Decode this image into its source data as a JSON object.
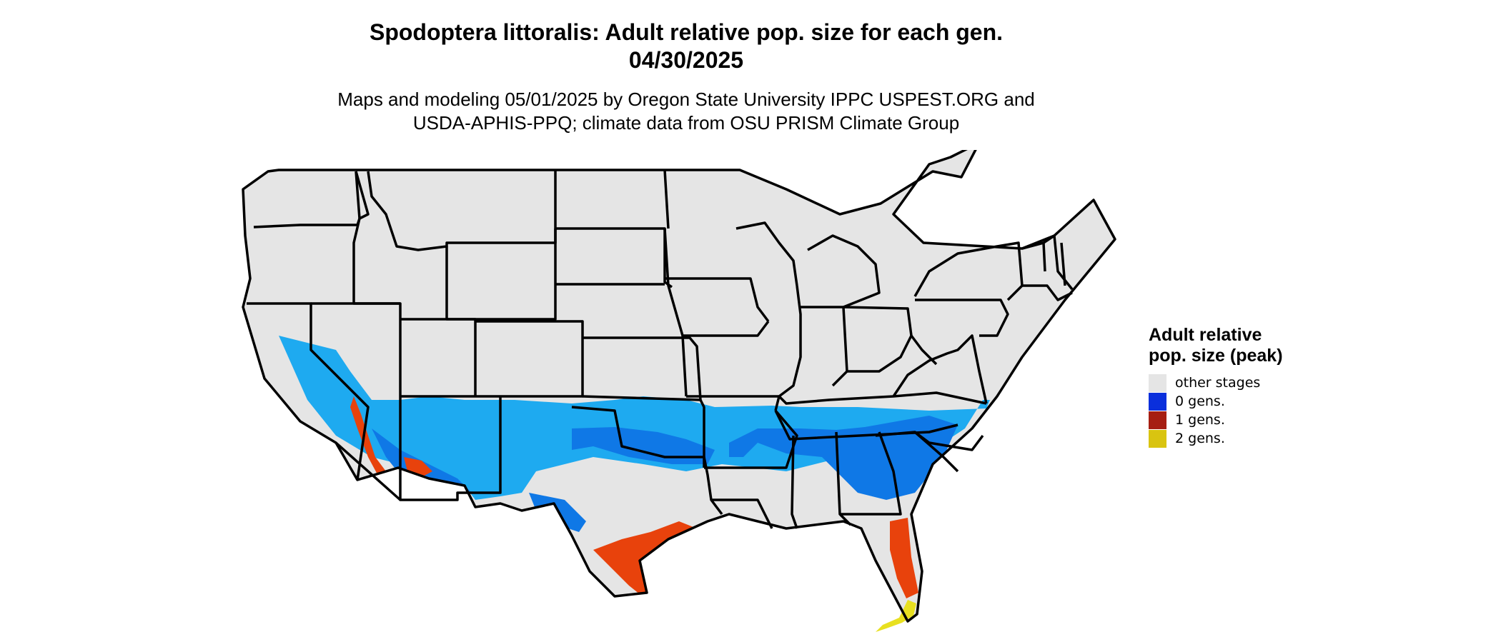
{
  "title": {
    "line1": "Spodoptera littoralis: Adult relative pop. size for each gen.",
    "line2": "04/30/2025"
  },
  "subtitle": {
    "line1": "Maps and modeling 05/01/2025 by Oregon State University IPPC USPEST.ORG and",
    "line2": "USDA-APHIS-PPQ; climate data from OSU PRISM Climate Group"
  },
  "legend": {
    "title": "Adult relative pop. size (peak)",
    "items": [
      {
        "label": "other stages",
        "color": "#e5e5e5"
      },
      {
        "label": "0 gens.",
        "color": "#0a2fdc"
      },
      {
        "label": "1 gens.",
        "color": "#a61e12"
      },
      {
        "label": "2 gens.",
        "color": "#d9c410"
      }
    ]
  },
  "colors": {
    "land": "#e5e5e5",
    "border": "#000000",
    "zero_gen_light": "#1eaaf0",
    "zero_gen_mid": "#0f78e6",
    "one_gen": "#e8420c",
    "two_gen": "#e8e020"
  }
}
